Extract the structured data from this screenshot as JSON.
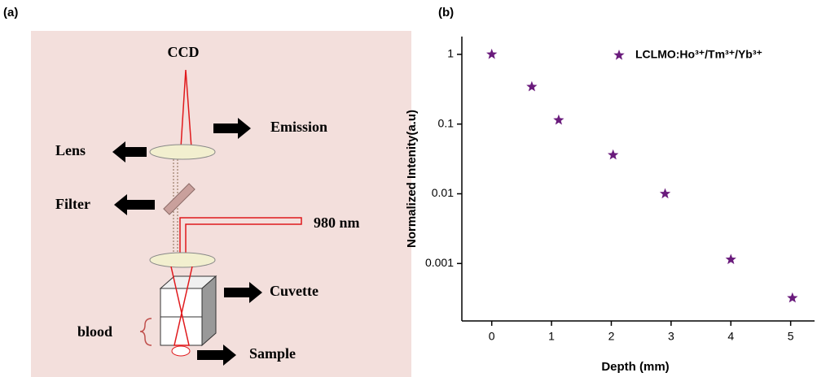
{
  "diagram": {
    "panel_label": "(a)",
    "labels": {
      "ccd": "CCD",
      "emission": "Emission",
      "lens": "Lens",
      "filter": "Filter",
      "laser": "980 nm",
      "cuvette": "Cuvette",
      "blood": "blood",
      "sample": "Sample"
    }
  },
  "chart_data": {
    "type": "scatter",
    "panel_label": "(b)",
    "x_label": "Depth (mm)",
    "y_label": "Normalized Intenity(a.u)",
    "x": [
      0,
      0.67,
      1.12,
      2.03,
      2.9,
      4.0,
      5.03
    ],
    "series": [
      {
        "name": "LCLMO:Ho³⁺/Tm³⁺/Yb³⁺",
        "color": "#6a1b7c",
        "values": [
          1,
          0.343,
          0.114,
          0.036,
          0.01,
          0.00114,
          0.00032
        ]
      }
    ],
    "xlim": [
      -0.5,
      5.4
    ],
    "xticks": [
      0,
      1,
      2,
      3,
      4,
      5
    ],
    "ylim": [
      0.00015,
      1.8
    ],
    "yticks": [
      1,
      0.1,
      0.01,
      0.001
    ],
    "y_scale": "log",
    "grid": false,
    "legend": "top-right"
  }
}
